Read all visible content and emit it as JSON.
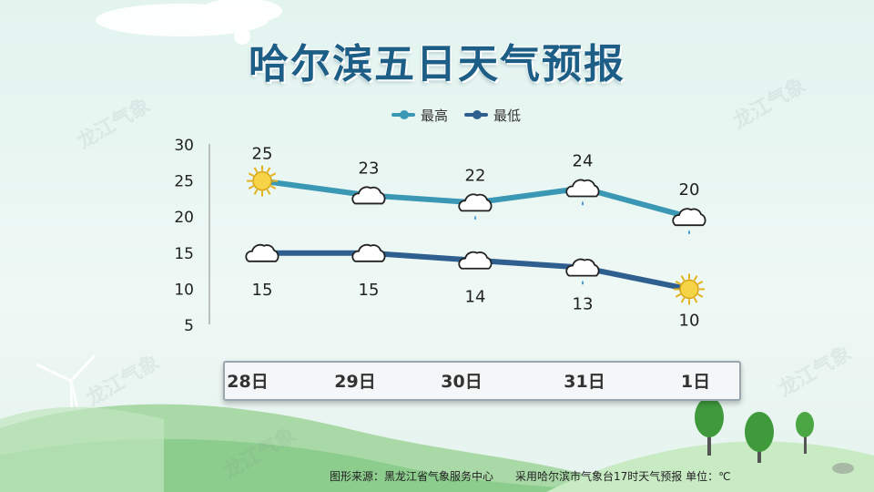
{
  "title": "哈尔滨五日天气预报",
  "watermark": "龙江气象",
  "legend": [
    {
      "label": "最高",
      "color": "#3b98b5"
    },
    {
      "label": "最低",
      "color": "#2f5f8f"
    }
  ],
  "dates": [
    "28日",
    "29日",
    "30日",
    "31日",
    "1日"
  ],
  "footer": {
    "source": "图形来源：黑龙江省气象服务中心",
    "note": "采用哈尔滨市气象台17时天气预报 单位：℃"
  },
  "chart_data": {
    "type": "line",
    "categories": [
      "28日",
      "29日",
      "30日",
      "31日",
      "1日"
    ],
    "series": [
      {
        "name": "最高",
        "values": [
          25,
          23,
          22,
          24,
          20
        ],
        "color": "#3b98b5",
        "icons": [
          "sun-icon",
          "cloud-icon",
          "rain-cloud-icon",
          "rain-cloud-icon",
          "rain-cloud-icon"
        ]
      },
      {
        "name": "最低",
        "values": [
          15,
          15,
          14,
          13,
          10
        ],
        "color": "#2f5f8f",
        "icons": [
          "cloud-icon",
          "cloud-icon",
          "cloud-icon",
          "rain-cloud-icon",
          "sun-icon"
        ]
      }
    ],
    "yticks": [
      30,
      25,
      20,
      15,
      10,
      5
    ],
    "ylim": [
      5,
      30
    ],
    "grid": false,
    "legend_position": "top-center"
  }
}
